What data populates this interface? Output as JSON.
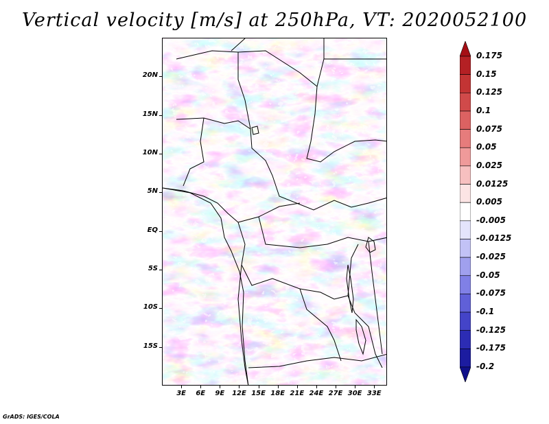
{
  "title": "Vertical velocity [m/s] at 250hPa, VT: 2020052100",
  "credit": "GrADS: IGES/COLA",
  "map": {
    "lat_ticks": [
      "20N",
      "15N",
      "10N",
      "5N",
      "EQ",
      "5S",
      "10S",
      "15S"
    ],
    "lat_values": [
      20,
      15,
      10,
      5,
      0,
      -5,
      -10,
      -15
    ],
    "lon_ticks": [
      "3E",
      "6E",
      "9E",
      "12E",
      "15E",
      "18E",
      "21E",
      "24E",
      "27E",
      "30E",
      "33E"
    ],
    "lon_values": [
      3,
      6,
      9,
      12,
      15,
      18,
      21,
      24,
      27,
      30,
      33
    ],
    "lat_range": [
      -20,
      25
    ],
    "lon_range": [
      0,
      35
    ],
    "variable": "Vertical velocity",
    "units": "m/s",
    "level": "250hPa"
  },
  "colorbar": {
    "labels": [
      "0.175",
      "0.15",
      "0.125",
      "0.1",
      "0.075",
      "0.05",
      "0.025",
      "0.0125",
      "0.005",
      "-0.005",
      "-0.0125",
      "-0.025",
      "-0.05",
      "-0.075",
      "-0.1",
      "-0.125",
      "-0.175",
      "-0.2"
    ],
    "colors": [
      "#a50f15",
      "#b42024",
      "#c33434",
      "#d04a4a",
      "#dc6262",
      "#e67c7c",
      "#ef9a9a",
      "#f7c0c0",
      "#fce4e4",
      "#ffffff",
      "#e4e4fc",
      "#c2c2f6",
      "#a0a0ee",
      "#8080e6",
      "#6060d8",
      "#4444c8",
      "#2c2cb4",
      "#1c1ca0",
      "#10108a"
    ]
  }
}
